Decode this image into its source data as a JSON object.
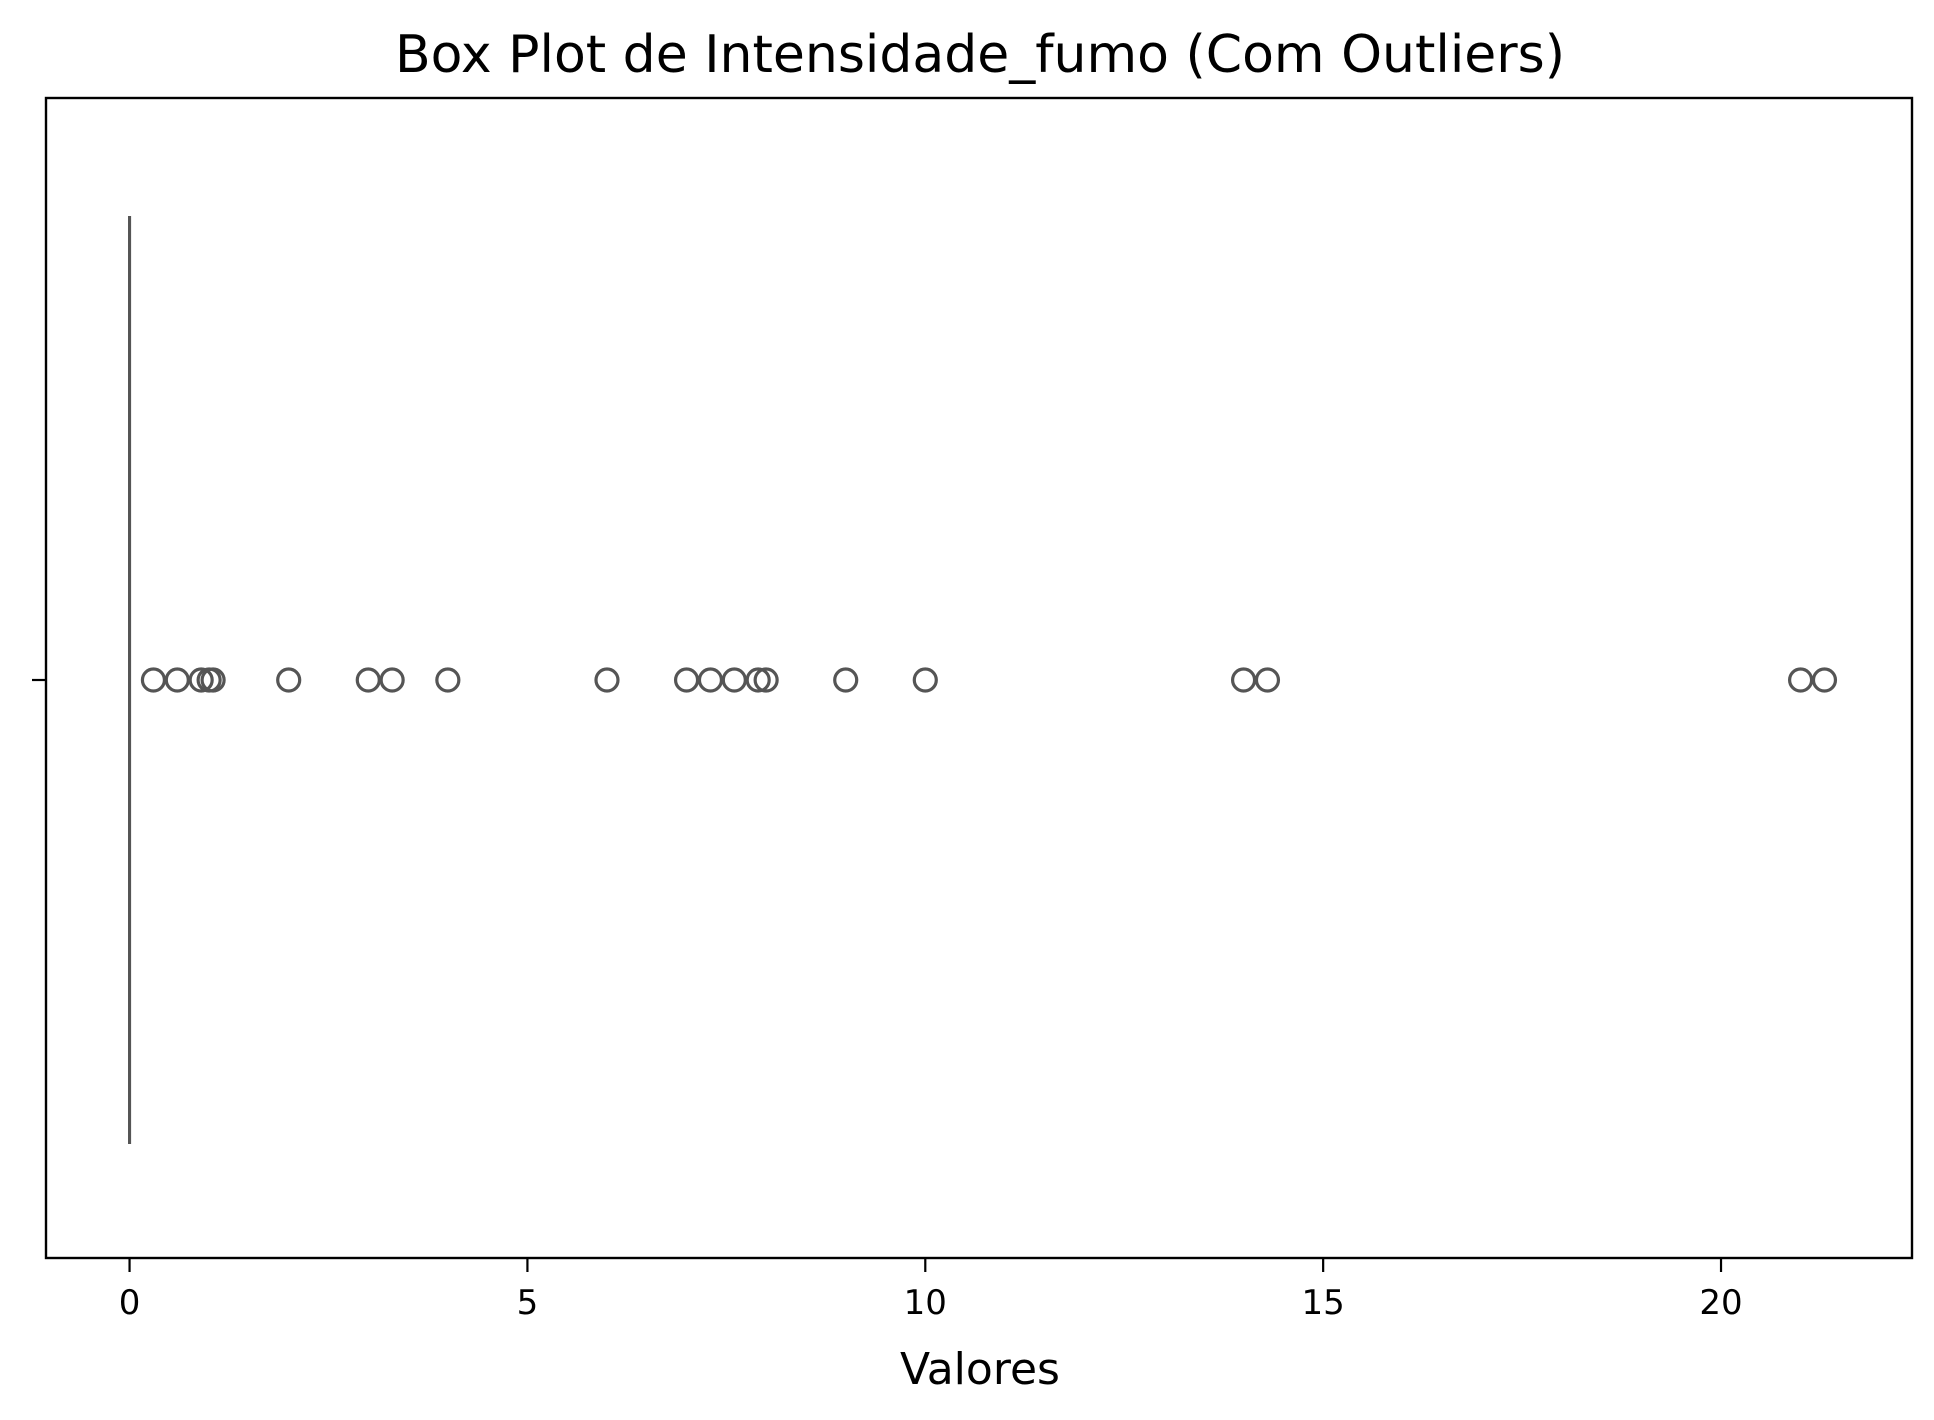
{
  "chart_data": {
    "type": "box",
    "title": "Box Plot de Intensidade_fumo (Com Outliers)",
    "xlabel": "Valores",
    "ylabel": "",
    "orientation": "horizontal",
    "xlim": [
      -1.05,
      22.4
    ],
    "x_ticks": [
      0,
      5,
      10,
      15,
      20
    ],
    "x_tick_labels": [
      "0",
      "5",
      "10",
      "15",
      "20"
    ],
    "grid": false,
    "legend": "none",
    "box": {
      "min": 0,
      "q1": 0,
      "median": 0,
      "q3": 0,
      "max": 0
    },
    "outliers": [
      0.3,
      0.6,
      0.9,
      1.0,
      1.05,
      2.0,
      3.0,
      3.3,
      4.0,
      6.0,
      7.0,
      7.3,
      7.6,
      7.9,
      8.0,
      9.0,
      10.0,
      14.0,
      14.3,
      21.0,
      21.3
    ],
    "colors": {
      "box": "#555555",
      "outlier_edge": "#555555",
      "axes": "#000000"
    }
  }
}
